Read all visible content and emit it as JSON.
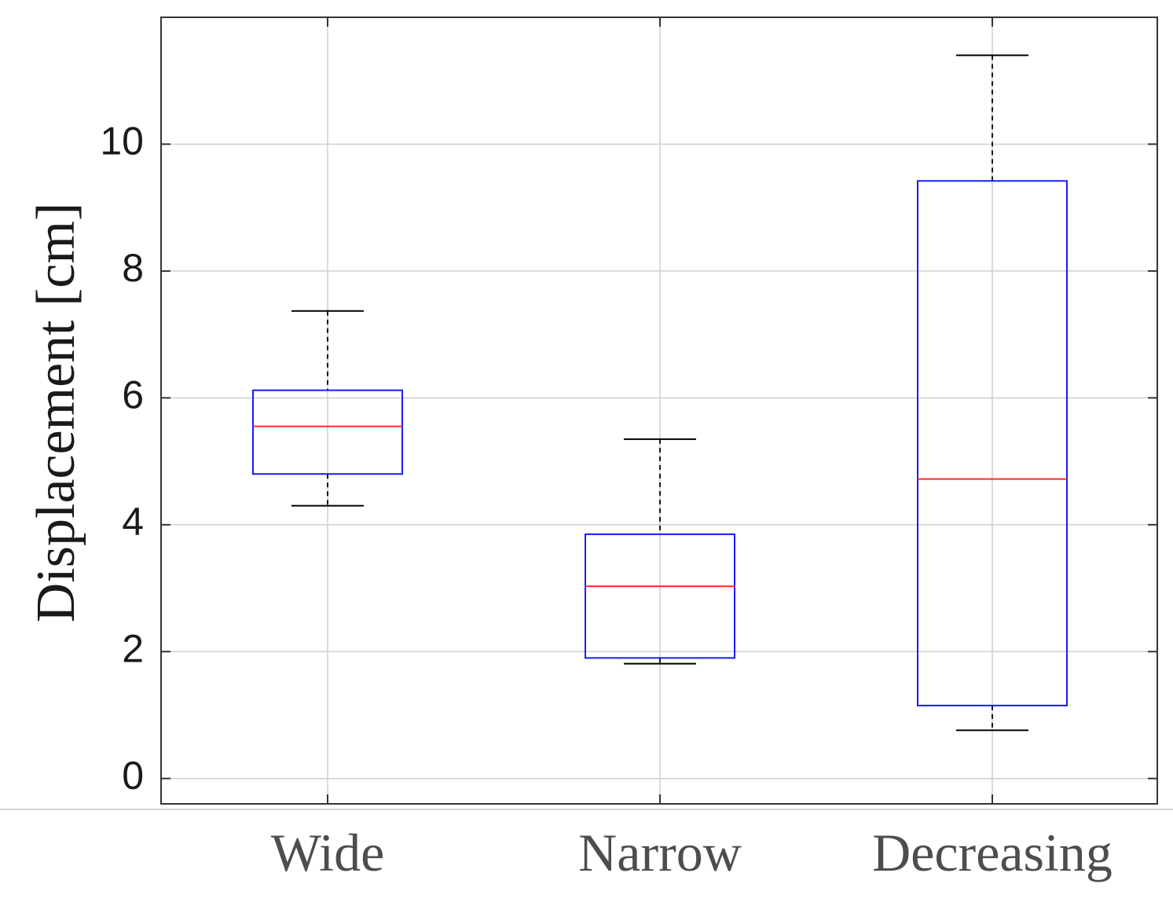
{
  "chart_data": {
    "type": "boxplot",
    "title": "",
    "xlabel": "",
    "ylabel": "Displacement  [cm]",
    "categories": [
      "Wide",
      "Narrow",
      "Decreasing"
    ],
    "ylim": [
      -0.4,
      12.0
    ],
    "yticks": [
      0,
      2,
      4,
      6,
      8,
      10
    ],
    "ytick_labels": [
      "0",
      "2",
      "4",
      "6",
      "8",
      "10"
    ],
    "grid": true,
    "boxes": [
      {
        "name": "Wide",
        "whisker_low": 4.3,
        "q1": 4.8,
        "median": 5.55,
        "q3": 6.12,
        "whisker_high": 7.37
      },
      {
        "name": "Narrow",
        "whisker_low": 1.81,
        "q1": 1.9,
        "median": 3.03,
        "q3": 3.85,
        "whisker_high": 5.35
      },
      {
        "name": "Decreasing",
        "whisker_low": 0.76,
        "q1": 1.15,
        "median": 4.72,
        "q3": 9.42,
        "whisker_high": 11.4
      }
    ],
    "colors": {
      "box": "#1a1aff",
      "median": "#ff2a2a",
      "whisker": "#000000",
      "grid": "#cfcfcf",
      "axis": "#333333"
    }
  }
}
